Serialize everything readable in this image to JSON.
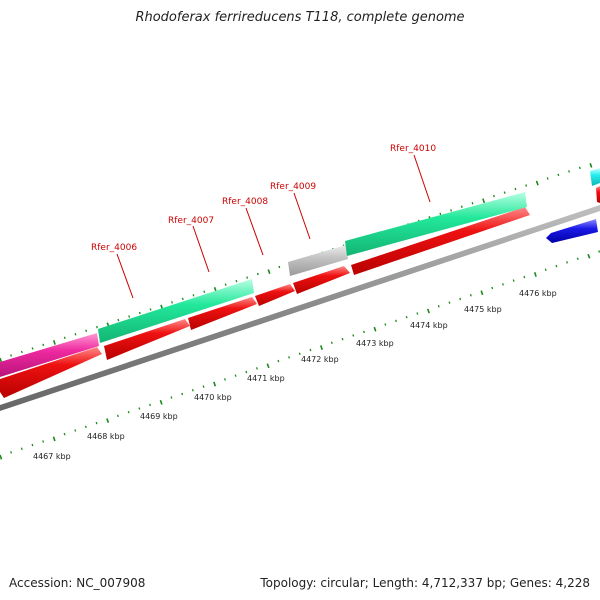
{
  "title": "Rhodoferax ferrireducens T118, complete genome",
  "footer": {
    "accession": "Accession: NC_007908",
    "summary": "Topology: circular; Length: 4,712,337 bp; Genes: 4,228"
  },
  "colors": {
    "cds": "#ee1111",
    "cds_minus": "#1a1ae6",
    "gene_green": "#22e89a",
    "gene_pink": "#ee2aa0",
    "gene_gray": "#bdbdbd",
    "gene_cyan": "#22eeee",
    "backbone": "#8a8a8a",
    "tick": "#1a8a1a",
    "label": "#cc0000"
  },
  "scale": {
    "unit": "kbp",
    "labels": [
      "4467 kbp",
      "4468 kbp",
      "4469 kbp",
      "4470 kbp",
      "4471 kbp",
      "4472 kbp",
      "4473 kbp",
      "4474 kbp",
      "4475 kbp",
      "4476 kbp"
    ]
  },
  "gene_labels": [
    "Rfer_4006",
    "Rfer_4007",
    "Rfer_4008",
    "Rfer_4009",
    "Rfer_4010"
  ]
}
